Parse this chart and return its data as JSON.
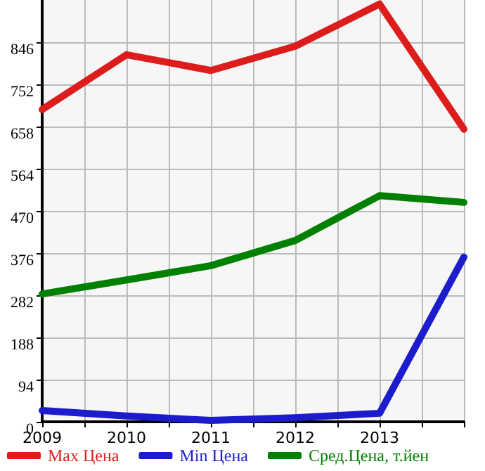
{
  "chart_data": {
    "type": "line",
    "x": [
      2009,
      2010,
      2011,
      2012,
      2013,
      2014
    ],
    "series": [
      {
        "name": "Max Цена",
        "color": "#dd1c1c",
        "values": [
          696,
          818,
          783,
          837,
          931,
          652
        ]
      },
      {
        "name": "Min Цена",
        "color": "#1c1ccc",
        "values": [
          25,
          13,
          3,
          9,
          19,
          367
        ]
      },
      {
        "name": "Сред.Цена, т.йен",
        "color": "#008000",
        "values": [
          285,
          316,
          348,
          404,
          504,
          489
        ]
      }
    ],
    "xlim": [
      2009,
      2014
    ],
    "xticks": [
      2009,
      {
        "value": 2009.5,
        "label": null
      },
      2010,
      {
        "value": 2010.5,
        "label": null
      },
      2011,
      {
        "value": 2011.5,
        "label": null
      },
      2012,
      {
        "value": 2012.5,
        "label": null
      },
      2013,
      {
        "value": 2013.5,
        "label": null
      },
      {
        "value": 2014,
        "label": null
      }
    ],
    "ylim": [
      0,
      940
    ],
    "yticks": [
      0,
      94,
      188,
      282,
      376,
      470,
      564,
      658,
      752,
      846
    ],
    "grid": true,
    "legend": "bottom",
    "marker": "none",
    "line_style": "solid"
  }
}
